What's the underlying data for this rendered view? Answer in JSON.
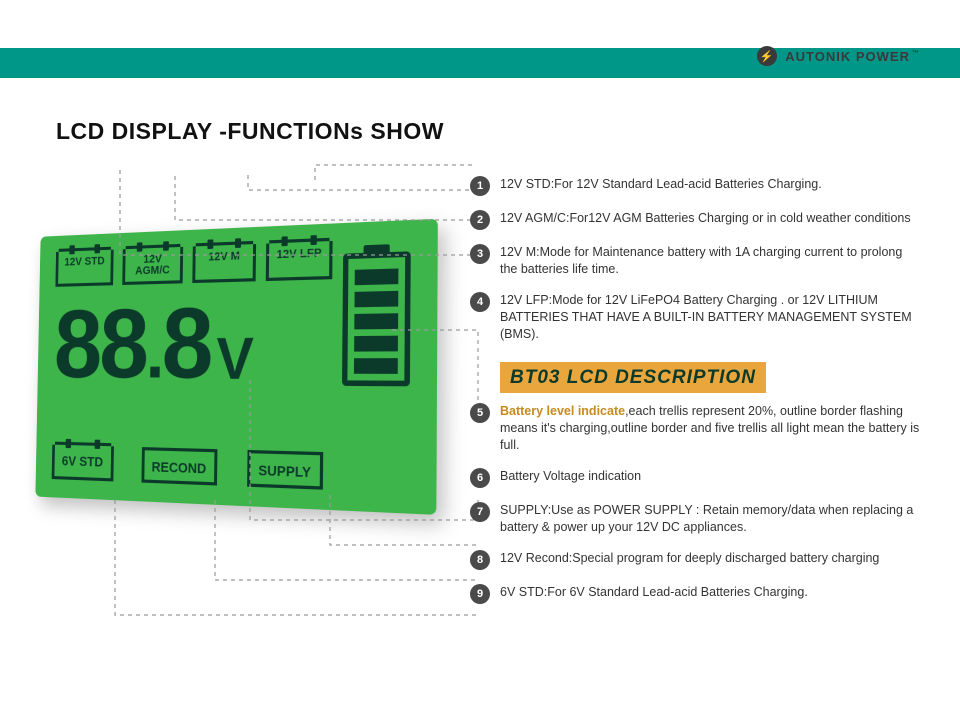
{
  "brand": {
    "name": "AUTONIK POWER",
    "tm": "™",
    "boltGlyph": "⚡"
  },
  "banner_color": "#009688",
  "title": "LCD DISPLAY -FUNCTIONs SHOW",
  "lcd": {
    "bg_color": "#3db54a",
    "fg_color": "#0b3a2a",
    "modes": [
      "12V STD",
      "12V AGM/C",
      "12V M",
      "12V LFP"
    ],
    "segments": "88.8",
    "unit": "V",
    "battery_bars": 5,
    "bottom_labels": {
      "six": "6V STD",
      "recond": "RECOND",
      "supply": "SUPPLY"
    }
  },
  "section_heading": "BT03 LCD DESCRIPTION",
  "callouts": [
    {
      "n": 1,
      "text": "12V STD:For 12V Standard Lead-acid Batteries Charging."
    },
    {
      "n": 2,
      "text": "12V AGM/C:For12V AGM Batteries Charging or  in cold weather conditions"
    },
    {
      "n": 3,
      "text": "12V M:Mode for Maintenance battery with 1A charging current  to prolong the batteries life time."
    },
    {
      "n": 4,
      "text": "12V LFP:Mode for  12V LiFePO4  Battery Charging . or 12V LITHIUM BATTERIES THAT HAVE A BUILT-IN BATTERY MANAGEMENT SYSTEM (BMS)."
    },
    {
      "n": 5,
      "highlight": "Battery level indicate",
      "text": ",each trellis represent 20%, outline border flashing means it's charging,outline border and five trellis all light mean the battery is full."
    },
    {
      "n": 6,
      "text": "Battery Voltage indication"
    },
    {
      "n": 7,
      "text": "SUPPLY:Use as POWER SUPPLY : Retain memory/data when replacing a battery & power up your 12V DC appliances."
    },
    {
      "n": 8,
      "text": "12V Recond:Special program for deeply discharged battery charging"
    },
    {
      "n": 9,
      "text": "6V  STD:For 6V Standard Lead-acid Batteries Charging."
    }
  ],
  "leaders": [
    "M120 170 L120 255 L470 255",
    "M175 176 L175 220 L472 220",
    "M248 175 L248 190 L474 190",
    "M315 180 L315 165 L476 165",
    "M392 330 L478 330 L478 416",
    "M250 380 L250 520 L478 520 L478 500",
    "M330 495 L330 545 L478 545",
    "M215 500 L215 580 L478 580",
    "M115 500 L115 615 L478 615"
  ],
  "style": {
    "title_fontsize": 23,
    "callout_fontsize": 12.5,
    "bullet_bg": "#4a4a4a",
    "heading_bg": "#e8a63c",
    "highlight_color": "#c78a1d"
  }
}
